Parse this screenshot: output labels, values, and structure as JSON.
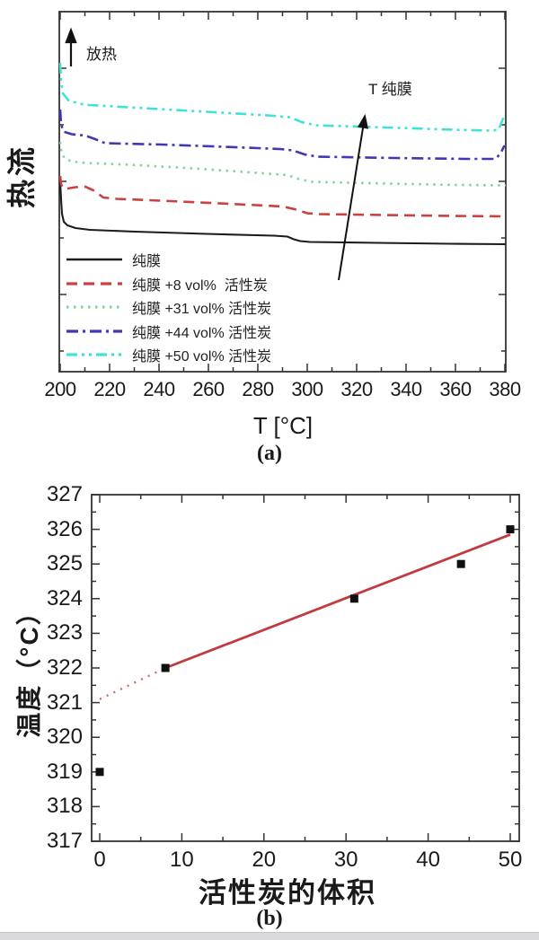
{
  "figure": {
    "caption_a": "(a)",
    "caption_b": "(b)"
  },
  "chart_data": [
    {
      "type": "line",
      "panel": "a",
      "title": "",
      "xlabel": "T [°C]",
      "ylabel": "热流",
      "xlim": [
        200,
        380
      ],
      "x_ticks_major": [
        200,
        220,
        240,
        260,
        280,
        300,
        320,
        340,
        360,
        380
      ],
      "x_minor_step": 10,
      "y_axis_note": "arbitrary heat-flow units, no tick labels",
      "grid": false,
      "legend_position": "inside bottom-left",
      "annotations": [
        {
          "text": "放热",
          "arrow": "vertical arrow pointing up, top-left inside frame"
        },
        {
          "text": "T 纯膜",
          "arrow": "long slanted arrow crossing all curves, pointing up-right toward label"
        }
      ],
      "series": [
        {
          "name": "纯膜",
          "style": "solid",
          "color": "#1c1c1c",
          "level_rank_bottom_to_top": 1,
          "shape": "initial sharp drop near 200°C, gentle decline, small step down near 320-330°C"
        },
        {
          "name": "纯膜 +8 vol%  活性炭",
          "style": "dashed",
          "color": "#c94141",
          "level_rank_bottom_to_top": 2,
          "shape": "initial transient near 200°C, gentle decline, small step down near 325°C"
        },
        {
          "name": "纯膜 +31 vol% 活性炭",
          "style": "dotted",
          "color": "#82d49a",
          "level_rank_bottom_to_top": 3,
          "shape": "initial transient near 200°C, gentle decline, small step down near 325°C"
        },
        {
          "name": "纯膜 +44 vol% 活性炭",
          "style": "dash-dot",
          "color": "#4038b4",
          "level_rank_bottom_to_top": 4,
          "shape": "initial transient near 200°C, gentle decline, small step down near 327°C, uptick at 380°C"
        },
        {
          "name": "纯膜 +50 vol% 活性炭",
          "style": "dash-dot-dot",
          "color": "#40e2d6",
          "level_rank_bottom_to_top": 5,
          "shape": "initial transient near 200°C, gentle decline, small step down near 328°C, uptick at 380°C"
        }
      ]
    },
    {
      "type": "scatter",
      "panel": "b",
      "title": "",
      "xlabel": "活性炭的体积",
      "ylabel": "温度（°C）",
      "xlim": [
        0,
        50
      ],
      "ylim": [
        317,
        327
      ],
      "x_ticks": [
        0,
        10,
        20,
        30,
        40,
        50
      ],
      "x_minor_step": 5,
      "y_ticks": [
        317,
        318,
        319,
        320,
        321,
        322,
        323,
        324,
        325,
        326,
        327
      ],
      "y_minor_step": 0.5,
      "grid": false,
      "marker": "black-square",
      "points": [
        [
          0,
          319
        ],
        [
          8,
          322
        ],
        [
          31,
          324
        ],
        [
          44,
          325
        ],
        [
          50,
          326
        ]
      ],
      "fit_line": {
        "color": "#c23a40",
        "dotted_color": "#d06a6a",
        "solid_segment": [
          [
            8,
            322
          ],
          [
            50,
            325.85
          ]
        ],
        "dotted_extrapolation": [
          [
            0,
            321.1
          ],
          [
            8,
            322
          ]
        ]
      }
    }
  ]
}
